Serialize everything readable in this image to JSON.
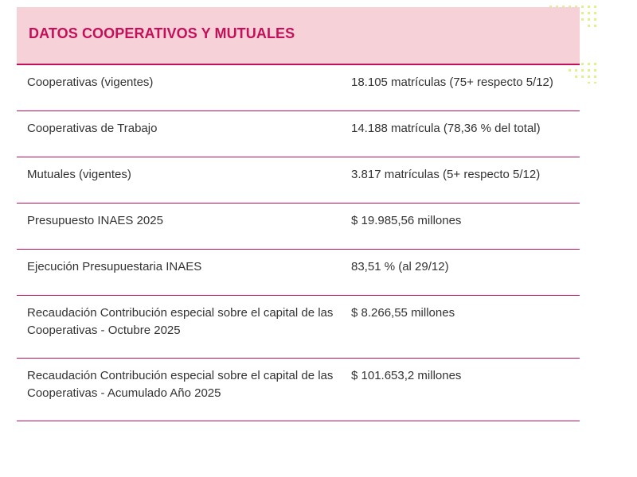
{
  "title": "DATOS COOPERATIVOS Y MUTUALES",
  "rows": [
    {
      "label": "Cooperativas (vigentes)",
      "value": "18.105 matrículas (75+ respecto 5/12)"
    },
    {
      "label": "Cooperativas de Trabajo",
      "value": "14.188 matrícula (78,36 % del total)"
    },
    {
      "label": "Mutuales (vigentes)",
      "value": "3.817 matrículas (5+ respecto 5/12)"
    },
    {
      "label": "Presupuesto INAES 2025",
      "value": "$ 19.985,56 millones"
    },
    {
      "label": "Ejecución Presupuestaria INAES",
      "value": "83,51 % (al 29/12)"
    },
    {
      "label": "Recaudación Contribución especial sobre el capital de las Cooperativas - Octubre 2025",
      "value": "$ 8.266,55 millones"
    },
    {
      "label": "Recaudación Contribución especial sobre el capital de las Cooperativas - Acumulado Año 2025",
      "value": "$ 101.653,2 millones"
    }
  ],
  "colors": {
    "accent": "#c4105a",
    "header_background": "#f7d1d8",
    "decoration": "#e2f08a"
  }
}
